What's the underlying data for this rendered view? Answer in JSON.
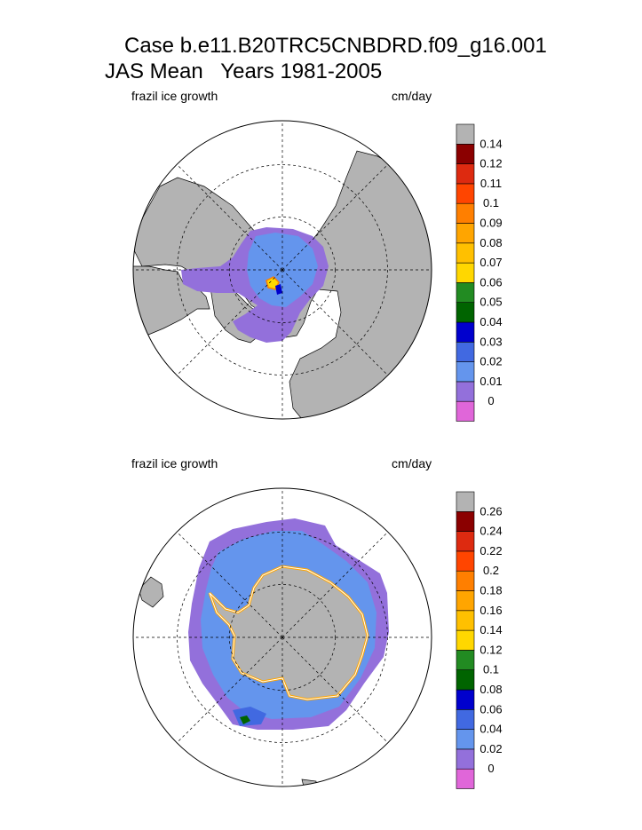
{
  "title": {
    "line1": "Case b.e11.B20TRC5CNBDRD.f09_g16.001",
    "line2": "JAS Mean   Years 1981-2005"
  },
  "colors": {
    "land": "#b3b3b3",
    "ocean": "#ffffff",
    "scale": [
      "#e066d9",
      "#9370db",
      "#6495ed",
      "#4169e1",
      "#0000cd",
      "#006400",
      "#228b22",
      "#ffd700",
      "#ffc000",
      "#ffa500",
      "#ff7f00",
      "#ff4500",
      "#dd2a10",
      "#8b0000",
      "#b3b3b3"
    ]
  },
  "chart_data": [
    {
      "type": "heatmap",
      "projection": "north-polar-stereographic",
      "title": "frazil ice growth",
      "units": "cm/day",
      "variable": "frazil ice growth",
      "region": "Northern Hemisphere",
      "levels": [
        0,
        0.01,
        0.02,
        0.03,
        0.04,
        0.05,
        0.06,
        0.07,
        0.08,
        0.09,
        0.1,
        0.11,
        0.12,
        0.14
      ],
      "level_labels": [
        "0",
        "0.01",
        "0.02",
        "0.03",
        "0.04",
        "0.05",
        "0.06",
        "0.07",
        "0.08",
        "0.09",
        "0.1",
        "0.11",
        "0.12",
        "0.14"
      ],
      "colorbar": "right"
    },
    {
      "type": "heatmap",
      "projection": "south-polar-stereographic",
      "title": "frazil ice growth",
      "units": "cm/day",
      "variable": "frazil ice growth",
      "region": "Southern Hemisphere",
      "levels": [
        0,
        0.02,
        0.04,
        0.06,
        0.08,
        0.1,
        0.12,
        0.14,
        0.16,
        0.18,
        0.2,
        0.22,
        0.24,
        0.26
      ],
      "level_labels": [
        "0",
        "0.02",
        "0.04",
        "0.06",
        "0.08",
        "0.1",
        "0.12",
        "0.14",
        "0.16",
        "0.18",
        "0.2",
        "0.22",
        "0.24",
        "0.26"
      ],
      "colorbar": "right"
    }
  ]
}
